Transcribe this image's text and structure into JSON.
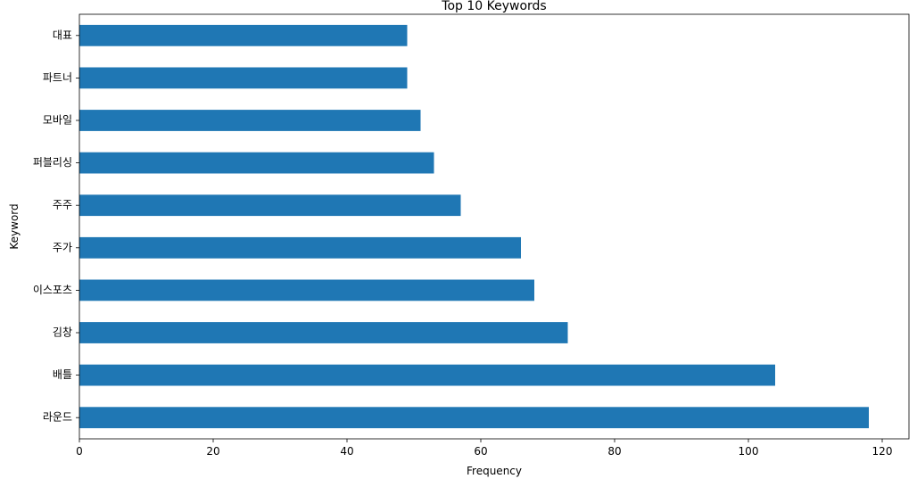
{
  "chart_data": {
    "type": "bar",
    "orientation": "horizontal",
    "title": "Top 10 Keywords",
    "xlabel": "Frequency",
    "ylabel": "Keyword",
    "categories": [
      "라운드",
      "배틀",
      "김창",
      "이스포츠",
      "주가",
      "주주",
      "퍼블리싱",
      "모바일",
      "파트너",
      "대표"
    ],
    "values": [
      118,
      104,
      73,
      68,
      66,
      57,
      53,
      51,
      49,
      49
    ],
    "xlim": [
      0,
      124
    ],
    "x_ticks": [
      0,
      20,
      40,
      60,
      80,
      100,
      120
    ],
    "bar_color": "#1f77b4",
    "grid": false,
    "legend": "none"
  }
}
